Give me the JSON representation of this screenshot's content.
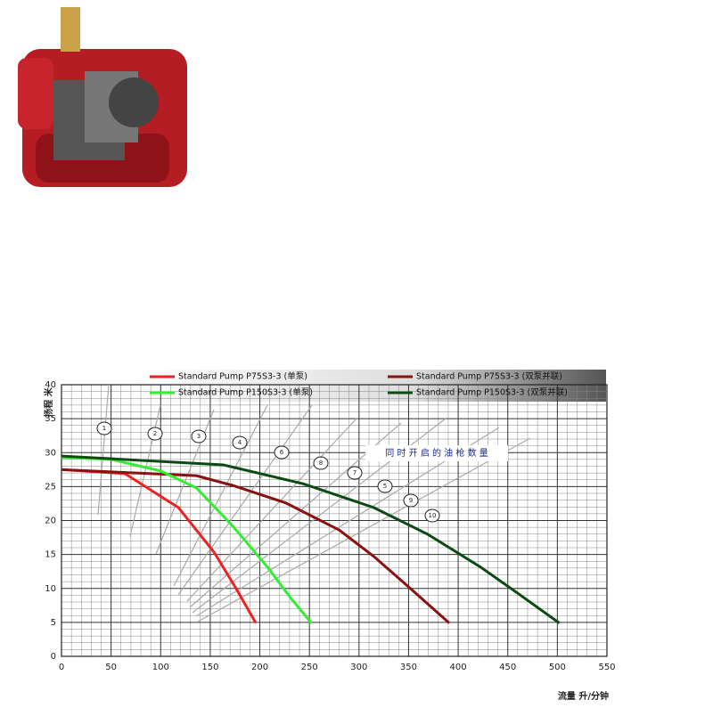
{
  "chart_data": {
    "type": "line",
    "ylabel": "扬程 米",
    "xlabel": "流量 升/分钟",
    "annotation": "同 时 开 启 的 油 枪 数 量",
    "dispenser_labels": [
      "1",
      "2",
      "3",
      "4",
      "6",
      "8",
      "7",
      "5",
      "9",
      "10"
    ],
    "xlim": [
      0,
      550
    ],
    "xticks": [
      0,
      50,
      100,
      150,
      200,
      250,
      300,
      350,
      400,
      450,
      500,
      550
    ],
    "ylim": [
      0,
      40
    ],
    "yticks": [
      0,
      5,
      10,
      15,
      20,
      25,
      30,
      35,
      40
    ],
    "grid": true,
    "series": [
      {
        "name": "Standard Pump P75S3-3 (单泵)",
        "color": "#ee2222",
        "x": [
          0,
          64,
          118,
          154,
          176,
          196
        ],
        "values": [
          27.5,
          26.9,
          21.9,
          15.3,
          10,
          4.9
        ]
      },
      {
        "name": "Standard Pump P75S3-3 (双泵并联)",
        "color": "#8b1010",
        "x": [
          0,
          136,
          172,
          226,
          280,
          315,
          351,
          391
        ],
        "values": [
          27.5,
          26.6,
          25.2,
          22.6,
          18.6,
          14.7,
          10.1,
          4.9
        ]
      },
      {
        "name": "Standard Pump P150S3-3 (单泵)",
        "color": "#33ee33",
        "x": [
          0,
          50,
          100,
          136,
          172,
          208,
          230,
          252
        ],
        "values": [
          29.3,
          29,
          27.3,
          24.8,
          19.3,
          13.1,
          8.8,
          4.9
        ]
      },
      {
        "name": "Standard Pump P150S3-3 (双泵并联)",
        "color": "#0d4a12",
        "x": [
          0,
          163,
          244,
          315,
          369,
          423,
          459,
          502
        ],
        "values": [
          29.5,
          28.2,
          25.4,
          21.9,
          18,
          13.1,
          9.4,
          4.9
        ]
      }
    ]
  }
}
